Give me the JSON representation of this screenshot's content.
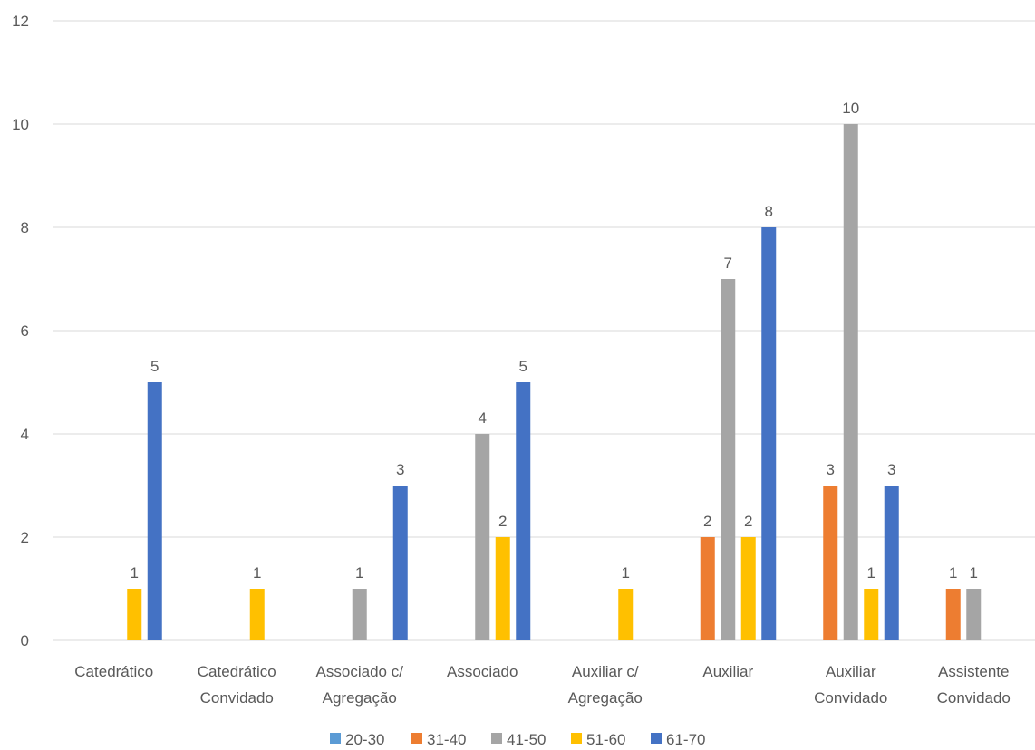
{
  "chart_data": {
    "type": "bar",
    "title": "",
    "xlabel": "",
    "ylabel": "",
    "ylim": [
      0,
      12
    ],
    "yticks": [
      0,
      2,
      4,
      6,
      8,
      10,
      12
    ],
    "grid": true,
    "legend_position": "bottom",
    "categories": [
      [
        "Catedrático"
      ],
      [
        "Catedrático",
        "Convidado"
      ],
      [
        "Associado c/",
        "Agregação"
      ],
      [
        "Associado"
      ],
      [
        "Auxiliar c/",
        "Agregação"
      ],
      [
        "Auxiliar"
      ],
      [
        "Auxiliar",
        "Convidado"
      ],
      [
        "Assistente",
        "Convidado"
      ]
    ],
    "series": [
      {
        "name": "20-30",
        "color": "#5b9bd5",
        "values": [
          0,
          0,
          0,
          0,
          0,
          0,
          0,
          0
        ]
      },
      {
        "name": "31-40",
        "color": "#ed7d31",
        "values": [
          0,
          0,
          0,
          0,
          0,
          2,
          3,
          1
        ]
      },
      {
        "name": "41-50",
        "color": "#a5a5a5",
        "values": [
          0,
          0,
          1,
          4,
          0,
          7,
          10,
          1
        ]
      },
      {
        "name": "51-60",
        "color": "#ffc000",
        "values": [
          1,
          1,
          0,
          2,
          1,
          2,
          1,
          0
        ]
      },
      {
        "name": "61-70",
        "color": "#4472c4",
        "values": [
          5,
          0,
          3,
          5,
          0,
          8,
          3,
          0
        ]
      }
    ]
  }
}
